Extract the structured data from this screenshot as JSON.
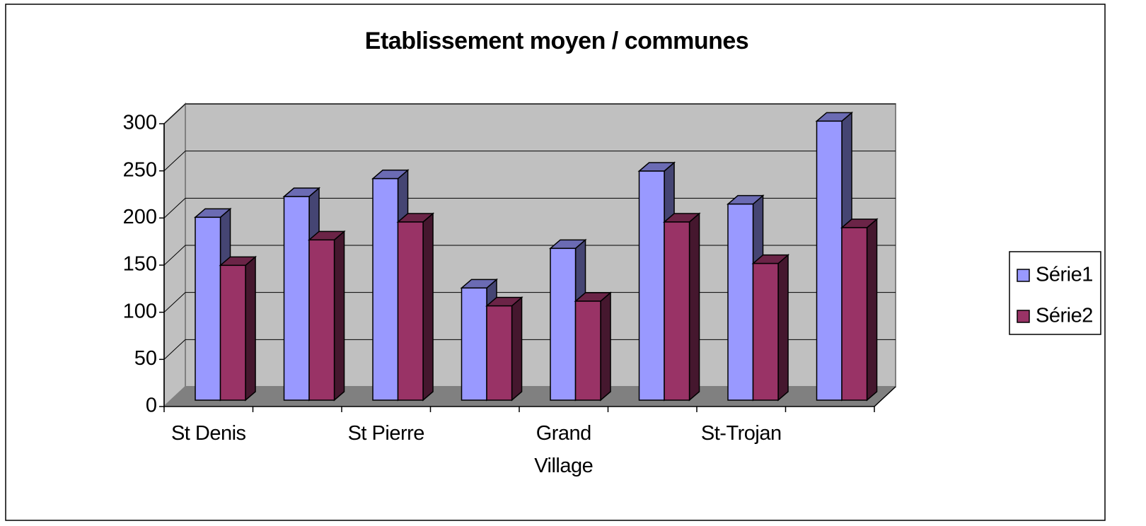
{
  "chart_data": {
    "type": "bar3d",
    "title": "Etablissement moyen / communes",
    "categories": [
      "St Denis",
      null,
      "St Pierre",
      null,
      "Grand Village",
      null,
      "St-Trojan",
      null
    ],
    "series": [
      {
        "name": "Série1",
        "color": "#9999ff",
        "values": [
          194,
          216,
          235,
          119,
          161,
          243,
          208,
          296
        ]
      },
      {
        "name": "Série2",
        "color": "#993366",
        "values": [
          143,
          170,
          189,
          100,
          105,
          189,
          145,
          183
        ]
      }
    ],
    "ylim": [
      0,
      300
    ],
    "yticks": [
      0,
      50,
      100,
      150,
      200,
      250,
      300
    ],
    "grid": true,
    "legend": "right"
  }
}
